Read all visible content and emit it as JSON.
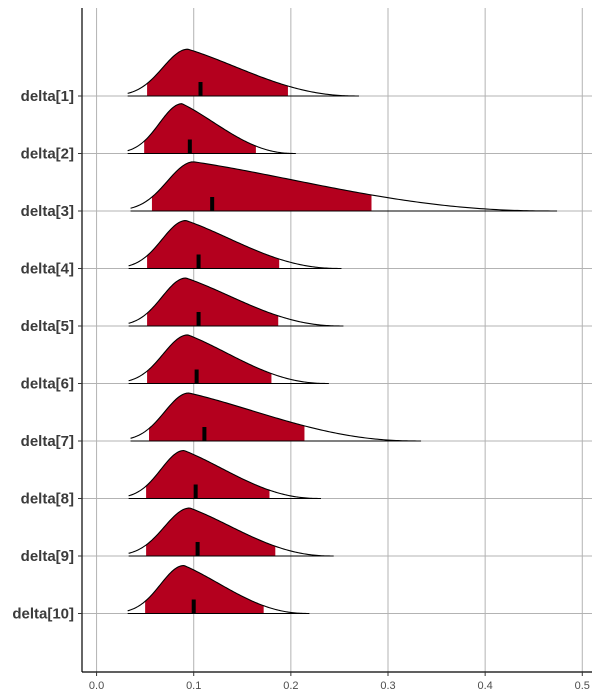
{
  "chart_data": {
    "type": "density-ridges",
    "title": "",
    "xlabel": "",
    "ylabel": "",
    "xlim": [
      -0.015,
      0.51
    ],
    "x_ticks": [
      0.0,
      0.1,
      0.2,
      0.3,
      0.4,
      0.5
    ],
    "x_tick_labels": [
      "0.0",
      "0.1",
      "0.2",
      "0.3",
      "0.4",
      "0.5"
    ],
    "grid": true,
    "colors": {
      "interval_fill": "#b4001e",
      "outline": "#000000",
      "grid": "#b3b3b3",
      "axis": "#000000"
    },
    "series": [
      {
        "name": "delta[1]",
        "min": 0.032,
        "mode": 0.094,
        "max": 0.27,
        "ci_low": 0.052,
        "ci_high": 0.197,
        "median": 0.107,
        "height": 0.78
      },
      {
        "name": "delta[2]",
        "min": 0.032,
        "mode": 0.088,
        "max": 0.205,
        "ci_low": 0.049,
        "ci_high": 0.164,
        "median": 0.096,
        "height": 0.83
      },
      {
        "name": "delta[3]",
        "min": 0.035,
        "mode": 0.1,
        "max": 0.474,
        "ci_low": 0.057,
        "ci_high": 0.283,
        "median": 0.119,
        "height": 0.82
      },
      {
        "name": "delta[4]",
        "min": 0.033,
        "mode": 0.092,
        "max": 0.252,
        "ci_low": 0.052,
        "ci_high": 0.188,
        "median": 0.105,
        "height": 0.8
      },
      {
        "name": "delta[5]",
        "min": 0.033,
        "mode": 0.092,
        "max": 0.254,
        "ci_low": 0.052,
        "ci_high": 0.187,
        "median": 0.105,
        "height": 0.8
      },
      {
        "name": "delta[6]",
        "min": 0.033,
        "mode": 0.094,
        "max": 0.239,
        "ci_low": 0.052,
        "ci_high": 0.18,
        "median": 0.103,
        "height": 0.81
      },
      {
        "name": "delta[7]",
        "min": 0.035,
        "mode": 0.095,
        "max": 0.334,
        "ci_low": 0.054,
        "ci_high": 0.214,
        "median": 0.111,
        "height": 0.8
      },
      {
        "name": "delta[8]",
        "min": 0.033,
        "mode": 0.09,
        "max": 0.231,
        "ci_low": 0.051,
        "ci_high": 0.178,
        "median": 0.102,
        "height": 0.8
      },
      {
        "name": "delta[9]",
        "min": 0.033,
        "mode": 0.096,
        "max": 0.244,
        "ci_low": 0.051,
        "ci_high": 0.184,
        "median": 0.104,
        "height": 0.8
      },
      {
        "name": "delta[10]",
        "min": 0.032,
        "mode": 0.09,
        "max": 0.219,
        "ci_low": 0.05,
        "ci_high": 0.172,
        "median": 0.1,
        "height": 0.8
      }
    ]
  }
}
